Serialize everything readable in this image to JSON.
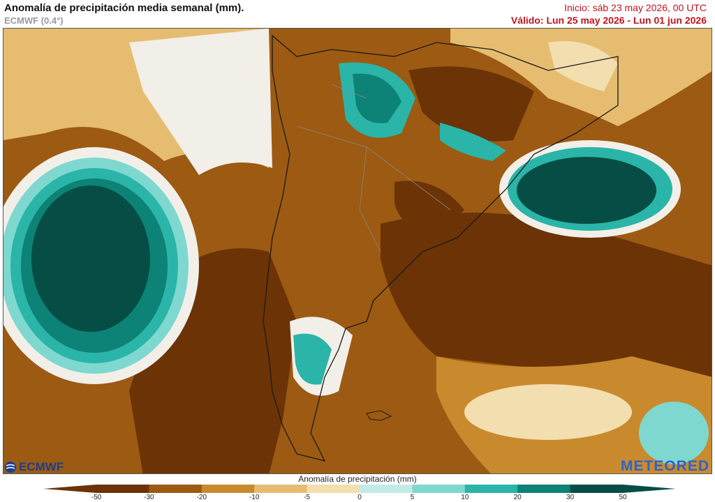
{
  "header": {
    "title": "Anomalía de precipitación media semanal (mm).",
    "model": "ECMWF (0.4°)",
    "init": "Inicio:  sáb 23 may 2026, 00 UTC",
    "valid": "Válido: Lun 25 may 2026 - Lun 01 jun 2026"
  },
  "logos": {
    "left": "ECMWF",
    "right": "METEORED"
  },
  "legend": {
    "title": "Anomalía de precipitación (mm)",
    "ticks": [
      "-50",
      "-30",
      "-20",
      "-10",
      "-5",
      "0",
      "5",
      "10",
      "20",
      "30",
      "50"
    ],
    "colors": [
      "#6b3306",
      "#9c5a12",
      "#c98a2e",
      "#e6bd70",
      "#f3deaf",
      "#f2efe9",
      "#c2ebe6",
      "#7fd8cf",
      "#2ab5a8",
      "#0d8276",
      "#064e45"
    ]
  },
  "map": {
    "region": "Sudamérica"
  }
}
